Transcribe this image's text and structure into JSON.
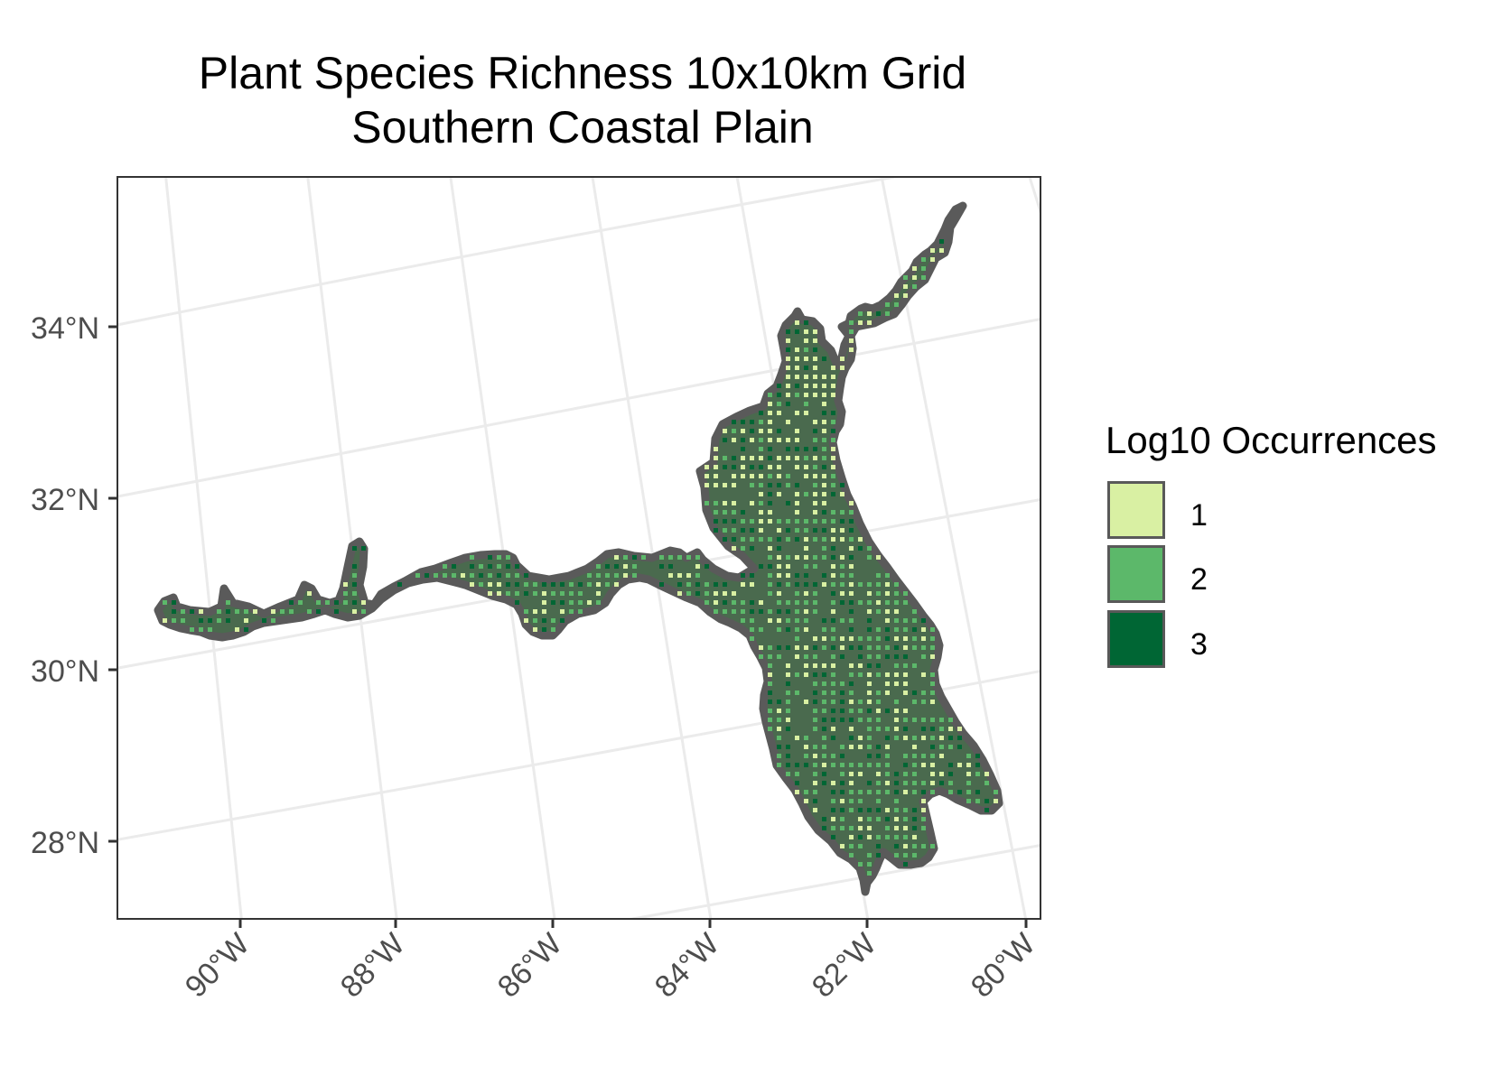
{
  "title_line1": "Plant Species Richness 10x10km Grid",
  "title_line2": "Southern Coastal Plain",
  "legend": {
    "title": "Log10 Occurrences",
    "items": [
      {
        "label": "1",
        "color": "#d9f0a3"
      },
      {
        "label": "2",
        "color": "#5cb86a"
      },
      {
        "label": "3",
        "color": "#006634"
      }
    ]
  },
  "axes": {
    "lat_labels": [
      "34°N",
      "32°N",
      "30°N",
      "28°N"
    ],
    "lon_labels": [
      "90°W",
      "88°W",
      "86°W",
      "84°W",
      "82°W",
      "80°W"
    ]
  },
  "colors": {
    "region_fill": "#4a6a4e",
    "region_outline": "#5a5a5a",
    "graticule": "#ebebeb",
    "panel_border": "#333333",
    "axis_text": "#4d4d4d"
  }
}
